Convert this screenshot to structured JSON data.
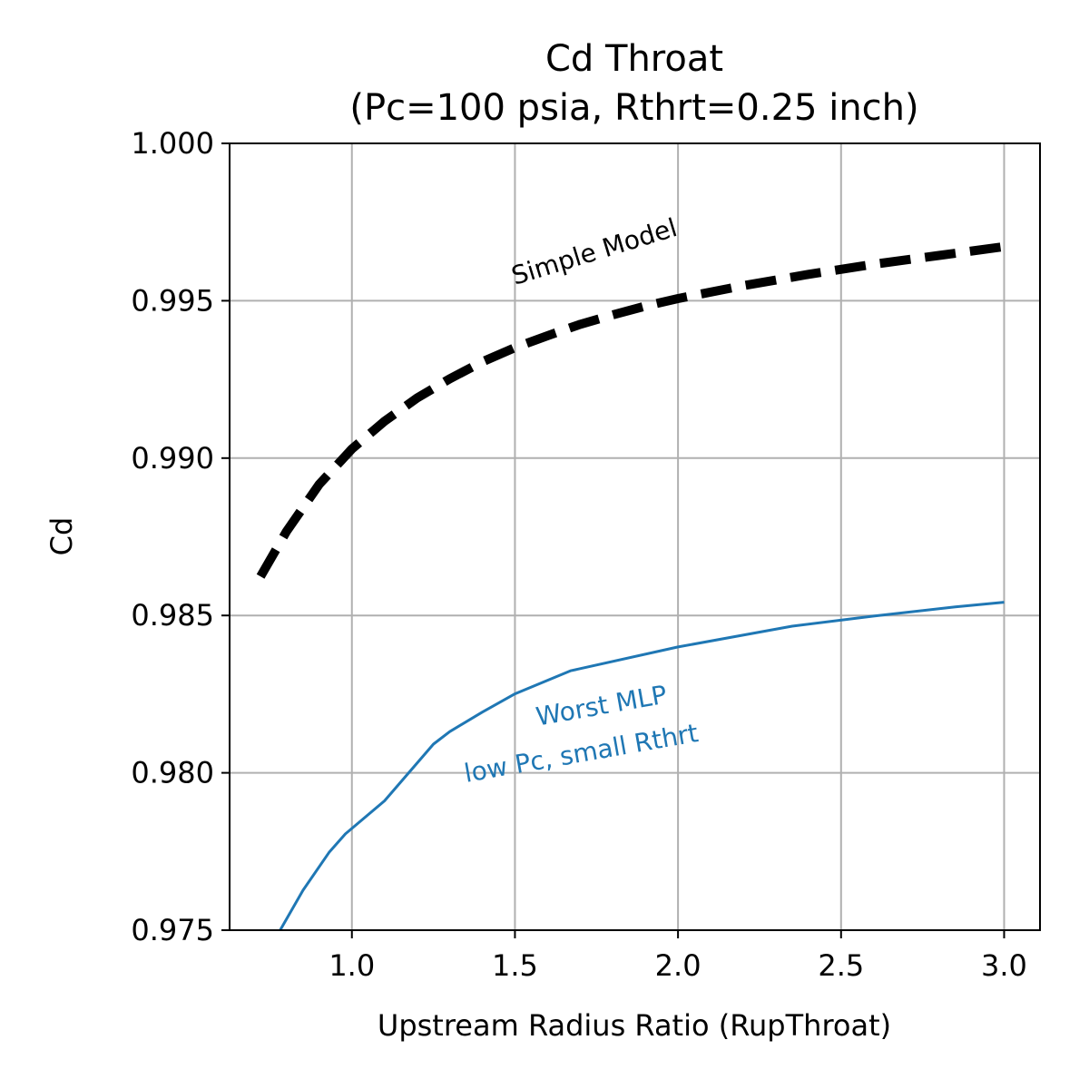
{
  "chart_data": {
    "type": "line",
    "title": "Cd Throat",
    "subtitle": "(Pc=100 psia, Rthrt=0.25 inch)",
    "xlabel": "Upstream Radius Ratio (RupThroat)",
    "ylabel": "Cd",
    "xlim": [
      0.625,
      3.11
    ],
    "ylim": [
      0.975,
      1.0
    ],
    "grid": true,
    "x_ticks": [
      1.0,
      1.5,
      2.0,
      2.5,
      3.0
    ],
    "x_tick_labels": [
      "1.0",
      "1.5",
      "2.0",
      "2.5",
      "3.0"
    ],
    "y_ticks": [
      0.975,
      0.98,
      0.985,
      0.99,
      0.995,
      1.0
    ],
    "y_tick_labels": [
      "0.975",
      "0.980",
      "0.985",
      "0.990",
      "0.995",
      "1.000"
    ],
    "series": [
      {
        "name": "Simple Model",
        "color": "#000000",
        "style": "dashed",
        "x": [
          0.72,
          0.8,
          0.9,
          1.0,
          1.1,
          1.2,
          1.3,
          1.4,
          1.5,
          1.6,
          1.7,
          1.8,
          1.9,
          2.0,
          2.2,
          2.4,
          2.6,
          2.8,
          3.0
        ],
        "y": [
          0.98624,
          0.98768,
          0.98917,
          0.99029,
          0.99117,
          0.99191,
          0.99252,
          0.99306,
          0.99351,
          0.99389,
          0.99425,
          0.99455,
          0.99483,
          0.99507,
          0.99548,
          0.99584,
          0.99616,
          0.99644,
          0.99672
        ]
      },
      {
        "name": "Worst MLP\nlow Pc, small Rthrt",
        "color": "#1f77b4",
        "style": "solid",
        "x": [
          0.78,
          0.85,
          0.93,
          0.98,
          1.1,
          1.25,
          1.3,
          1.4,
          1.5,
          1.67,
          2.0,
          2.35,
          2.6,
          2.85,
          3.0
        ],
        "y": [
          0.975,
          0.97627,
          0.97747,
          0.97806,
          0.97911,
          0.98091,
          0.98131,
          0.98193,
          0.98251,
          0.98324,
          0.984,
          0.98466,
          0.98498,
          0.98527,
          0.98542
        ]
      }
    ],
    "annotations": [
      {
        "text": "Simple Model",
        "x": 1.5,
        "y": 0.9955,
        "color": "#000000",
        "rotation": -17
      },
      {
        "text": "Worst MLP",
        "x": 1.57,
        "y": 0.9815,
        "color": "#1f77b4",
        "rotation": -10
      },
      {
        "text": "low Pc, small Rthrt",
        "x": 1.35,
        "y": 0.9797,
        "color": "#1f77b4",
        "rotation": -10
      }
    ]
  }
}
